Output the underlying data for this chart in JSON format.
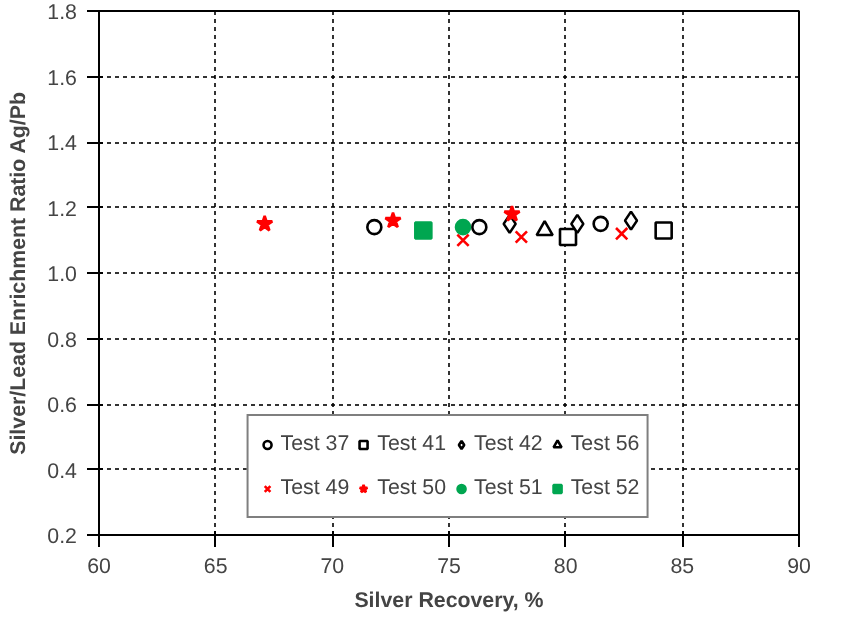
{
  "chart_data": {
    "type": "scatter",
    "xlabel": "Silver Recovery, %",
    "ylabel": "Silver/Lead Enrichment Ratio Ag/Pb",
    "xlim": [
      60,
      90
    ],
    "ylim": [
      0.2,
      1.8
    ],
    "xticks": [
      60,
      65,
      70,
      75,
      80,
      85,
      90
    ],
    "yticks": [
      {
        "value": 0.2,
        "label": "0.2"
      },
      {
        "value": 0.4,
        "label": "0.4"
      },
      {
        "value": 0.6,
        "label": "0.6"
      },
      {
        "value": 0.8,
        "label": "0.8"
      },
      {
        "value": 1.0,
        "label": "1.0"
      },
      {
        "value": 1.2,
        "label": "1.2"
      },
      {
        "value": 1.4,
        "label": "1.4"
      },
      {
        "value": 1.6,
        "label": "1.6"
      },
      {
        "value": 1.8,
        "label": "1.8"
      }
    ],
    "grid": true,
    "legend": "bottom",
    "series": [
      {
        "name": "Test 37",
        "color": "#000000",
        "marker": "circle",
        "x": [
          71.8,
          76.3,
          81.5
        ],
        "values": [
          1.14,
          1.14,
          1.15
        ]
      },
      {
        "name": "Test 41",
        "color": "#000000",
        "marker": "square",
        "x": [
          80.1,
          84.2
        ],
        "values": [
          1.11,
          1.13
        ]
      },
      {
        "name": "Test 42",
        "color": "#000000",
        "marker": "diamond",
        "x": [
          77.6,
          80.5,
          82.8
        ],
        "values": [
          1.15,
          1.15,
          1.16
        ]
      },
      {
        "name": "Test 56",
        "color": "#000000",
        "marker": "triangle",
        "x": [
          79.1
        ],
        "values": [
          1.13
        ]
      },
      {
        "name": "Test 49",
        "color": "#ff0000",
        "marker": "cross",
        "x": [
          75.6,
          78.1,
          82.4
        ],
        "values": [
          1.1,
          1.11,
          1.12
        ]
      },
      {
        "name": "Test 50",
        "color": "#ff0000",
        "marker": "star",
        "x": [
          67.1,
          72.6,
          77.7
        ],
        "values": [
          1.15,
          1.16,
          1.18
        ]
      },
      {
        "name": "Test 51",
        "color": "#00a650",
        "marker": "circle",
        "x": [
          75.6
        ],
        "values": [
          1.14
        ]
      },
      {
        "name": "Test 52",
        "color": "#00a650",
        "marker": "square",
        "x": [
          73.9
        ],
        "values": [
          1.13
        ]
      }
    ]
  }
}
